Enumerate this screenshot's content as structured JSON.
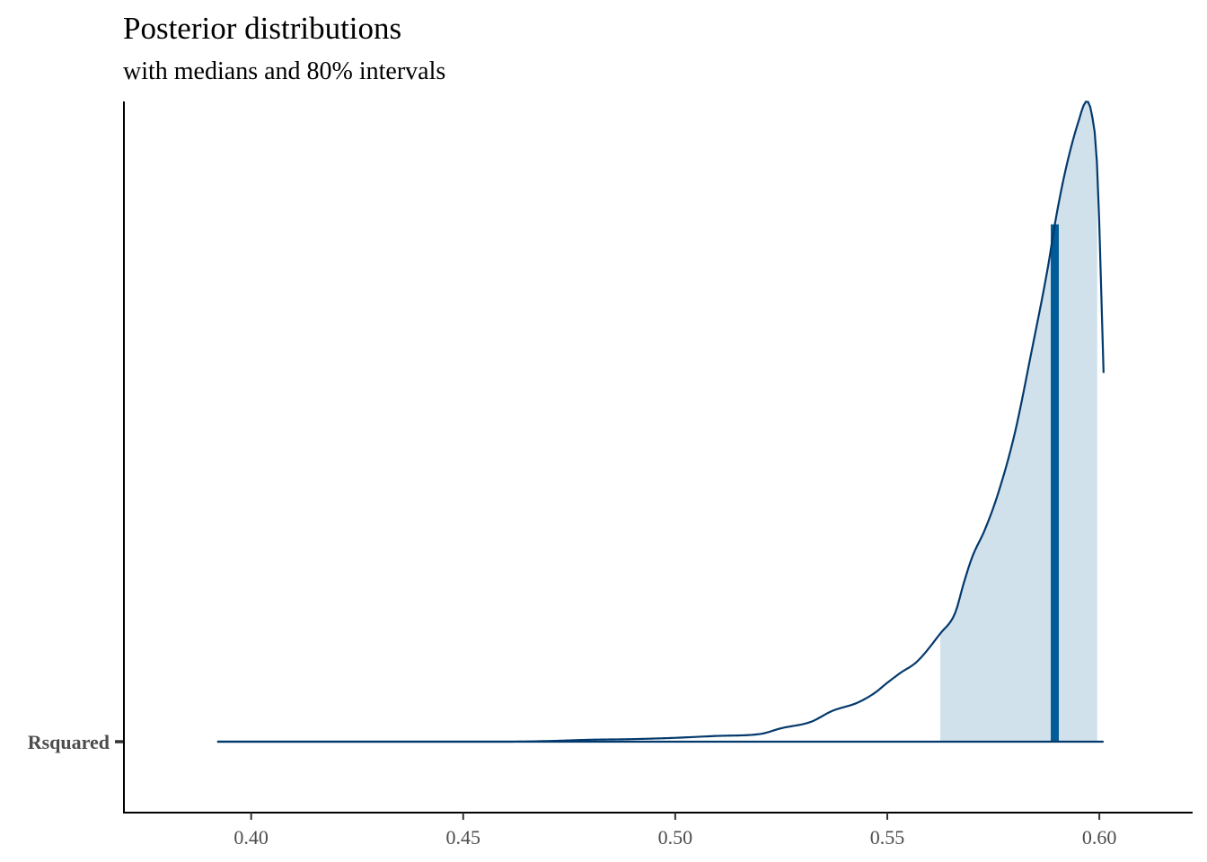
{
  "chart_data": {
    "type": "area",
    "title": "Posterior distributions",
    "subtitle": "with medians and 80% intervals",
    "xlabel": "",
    "ylabel": "",
    "xlim": [
      0.37,
      0.622
    ],
    "x_ticks": [
      0.4,
      0.45,
      0.5,
      0.55,
      0.6
    ],
    "x_tick_labels": [
      "0.40",
      "0.45",
      "0.50",
      "0.55",
      "0.60"
    ],
    "y_categories": [
      "Rsquared"
    ],
    "grid": false,
    "legend": "none",
    "series": [
      {
        "parameter": "Rsquared",
        "range": [
          0.392,
          0.601
        ],
        "median": 0.5895,
        "interval_80": [
          0.5625,
          0.5995
        ],
        "density_max": 1.0,
        "density": {
          "x": [
            0.392,
            0.46,
            0.47,
            0.48,
            0.49,
            0.5,
            0.51,
            0.52,
            0.525,
            0.532,
            0.537,
            0.543,
            0.547,
            0.55,
            0.553,
            0.557,
            0.5625,
            0.566,
            0.568,
            0.57,
            0.573,
            0.576,
            0.58,
            0.584,
            0.588,
            0.5895,
            0.592,
            0.595,
            0.597,
            0.598,
            0.5995,
            0.601
          ],
          "y": [
            0.0,
            0.0,
            0.001,
            0.003,
            0.004,
            0.006,
            0.009,
            0.012,
            0.021,
            0.031,
            0.048,
            0.061,
            0.076,
            0.092,
            0.107,
            0.125,
            0.169,
            0.201,
            0.247,
            0.288,
            0.331,
            0.385,
            0.48,
            0.609,
            0.746,
            0.808,
            0.892,
            0.967,
            1.0,
            0.987,
            0.896,
            0.576
          ]
        }
      }
    ],
    "colors": {
      "line": "#03396c",
      "fill": "#d1e1ec",
      "median": "#005b96",
      "axis": "#000000",
      "tick_text": "#4d4d4d"
    }
  }
}
